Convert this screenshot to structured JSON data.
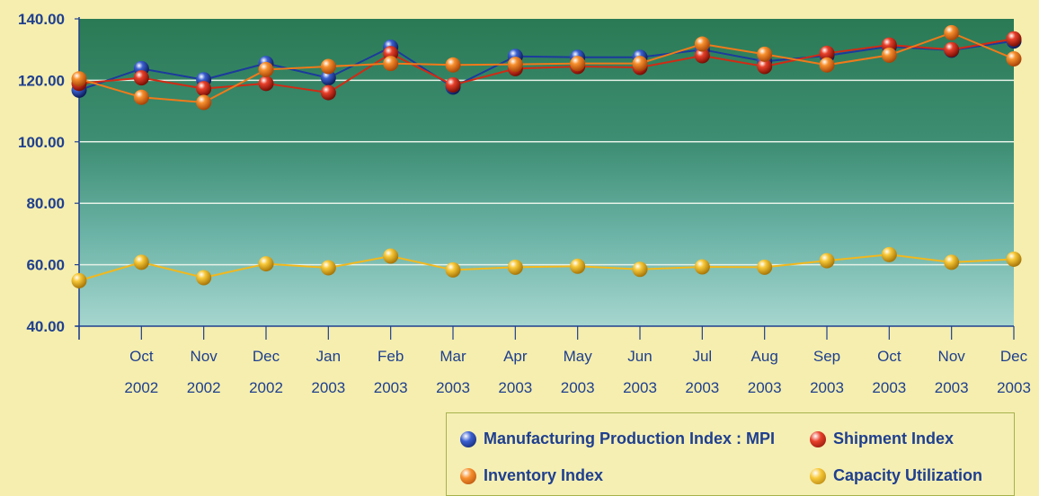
{
  "chart_data": {
    "type": "line",
    "categories": [
      {
        "month": "",
        "year": ""
      },
      {
        "month": "Oct",
        "year": "2002"
      },
      {
        "month": "Nov",
        "year": "2002"
      },
      {
        "month": "Dec",
        "year": "2002"
      },
      {
        "month": "Jan",
        "year": "2003"
      },
      {
        "month": "Feb",
        "year": "2003"
      },
      {
        "month": "Mar",
        "year": "2003"
      },
      {
        "month": "Apr",
        "year": "2003"
      },
      {
        "month": "May",
        "year": "2003"
      },
      {
        "month": "Jun",
        "year": "2003"
      },
      {
        "month": "Jul",
        "year": "2003"
      },
      {
        "month": "Aug",
        "year": "2003"
      },
      {
        "month": "Sep",
        "year": "2003"
      },
      {
        "month": "Oct",
        "year": "2003"
      },
      {
        "month": "Nov",
        "year": "2003"
      },
      {
        "month": "Dec",
        "year": "2003"
      }
    ],
    "yticks": [
      "40.00",
      "60.00",
      "80.00",
      "100.00",
      "120.00",
      "140.00"
    ],
    "ylim": [
      40,
      140
    ],
    "grid": true,
    "legend_position": "bottom-right",
    "series": [
      {
        "name": "Manufacturing Production Index : MPI",
        "color": "#1c3a9c",
        "values": [
          116.8,
          123.8,
          120.2,
          125.5,
          120.8,
          130.8,
          117.8,
          127.8,
          127.5,
          127.5,
          130.0,
          126.2,
          128.0,
          131.0,
          129.8,
          132.8
        ]
      },
      {
        "name": "Shipment Index",
        "color": "#d22a14",
        "values": [
          119.0,
          120.8,
          117.3,
          119.0,
          116.0,
          128.7,
          118.5,
          123.8,
          124.5,
          124.2,
          128.0,
          124.5,
          128.8,
          131.5,
          130.0,
          133.5
        ]
      },
      {
        "name": "Inventory Index",
        "color": "#f07a1a",
        "values": [
          120.5,
          114.5,
          112.8,
          123.5,
          124.5,
          125.5,
          125.0,
          125.2,
          125.5,
          125.5,
          131.8,
          128.5,
          125.0,
          128.2,
          135.5,
          127.0
        ]
      },
      {
        "name": "Capacity Utilization",
        "color": "#f2b81c",
        "values": [
          54.8,
          60.8,
          55.8,
          60.3,
          59.0,
          62.8,
          58.3,
          59.2,
          59.5,
          58.5,
          59.3,
          59.2,
          61.3,
          63.3,
          60.8,
          61.8
        ]
      }
    ]
  }
}
